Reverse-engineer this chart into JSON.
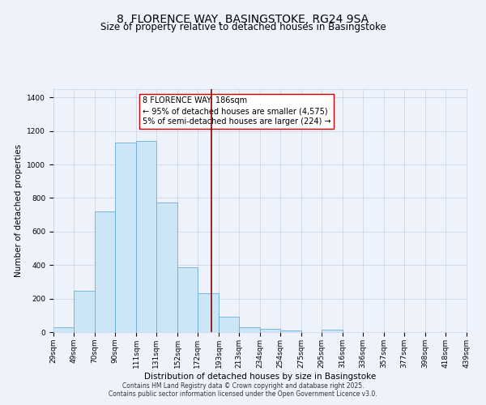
{
  "title": "8, FLORENCE WAY, BASINGSTOKE, RG24 9SA",
  "subtitle": "Size of property relative to detached houses in Basingstoke",
  "xlabel": "Distribution of detached houses by size in Basingstoke",
  "ylabel": "Number of detached properties",
  "bar_left_edges": [
    29,
    49,
    70,
    90,
    111,
    131,
    152,
    172,
    193,
    213,
    234,
    254,
    275,
    295,
    316,
    336,
    357,
    377,
    398,
    418
  ],
  "bar_widths": [
    20,
    21,
    20,
    21,
    20,
    21,
    20,
    21,
    20,
    21,
    20,
    21,
    20,
    21,
    20,
    21,
    20,
    21,
    20,
    21
  ],
  "bar_heights": [
    30,
    245,
    720,
    1130,
    1140,
    775,
    385,
    230,
    90,
    30,
    18,
    12,
    0,
    15,
    0,
    0,
    0,
    0,
    0,
    0
  ],
  "bar_facecolor": "#cce5f7",
  "bar_edgecolor": "#6baed6",
  "property_line_x": 186,
  "property_line_color": "#8b0000",
  "annotation_line1": "8 FLORENCE WAY: 186sqm",
  "annotation_line2": "← 95% of detached houses are smaller (4,575)",
  "annotation_line3": "5% of semi-detached houses are larger (224) →",
  "ylim": [
    0,
    1450
  ],
  "xlim": [
    29,
    439
  ],
  "tick_labels": [
    "29sqm",
    "49sqm",
    "70sqm",
    "90sqm",
    "111sqm",
    "131sqm",
    "152sqm",
    "172sqm",
    "193sqm",
    "213sqm",
    "234sqm",
    "254sqm",
    "275sqm",
    "295sqm",
    "316sqm",
    "336sqm",
    "357sqm",
    "377sqm",
    "398sqm",
    "418sqm",
    "439sqm"
  ],
  "footnote1": "Contains HM Land Registry data © Crown copyright and database right 2025.",
  "footnote2": "Contains public sector information licensed under the Open Government Licence v3.0.",
  "background_color": "#eef2fb",
  "grid_color": "#c8d0e8",
  "title_fontsize": 10,
  "subtitle_fontsize": 8.5,
  "axis_label_fontsize": 7.5,
  "tick_fontsize": 6.5,
  "annotation_fontsize": 7,
  "footnote_fontsize": 5.5
}
